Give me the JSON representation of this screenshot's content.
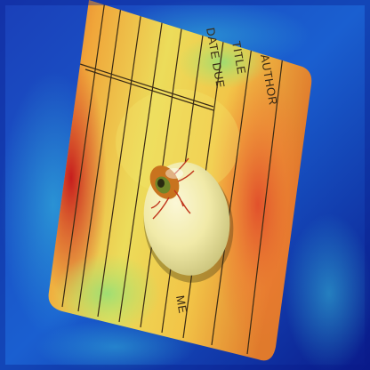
{
  "card": {
    "column_headers": {
      "author": "AUTHOR",
      "title": "TITLE",
      "date_due": "DATE DUE"
    },
    "bottom_fragment": "ME"
  },
  "overlay": {
    "type": "heatmap",
    "colormap": [
      "#0a1a8a",
      "#1a4fd6",
      "#2fb7e0",
      "#6ee08a",
      "#f0e64a",
      "#f4a03a",
      "#e0442a",
      "#a3121a"
    ]
  },
  "object": {
    "name": "eyeball-toy",
    "iris_color": "#c8731e",
    "vein_color": "#c0361c"
  }
}
